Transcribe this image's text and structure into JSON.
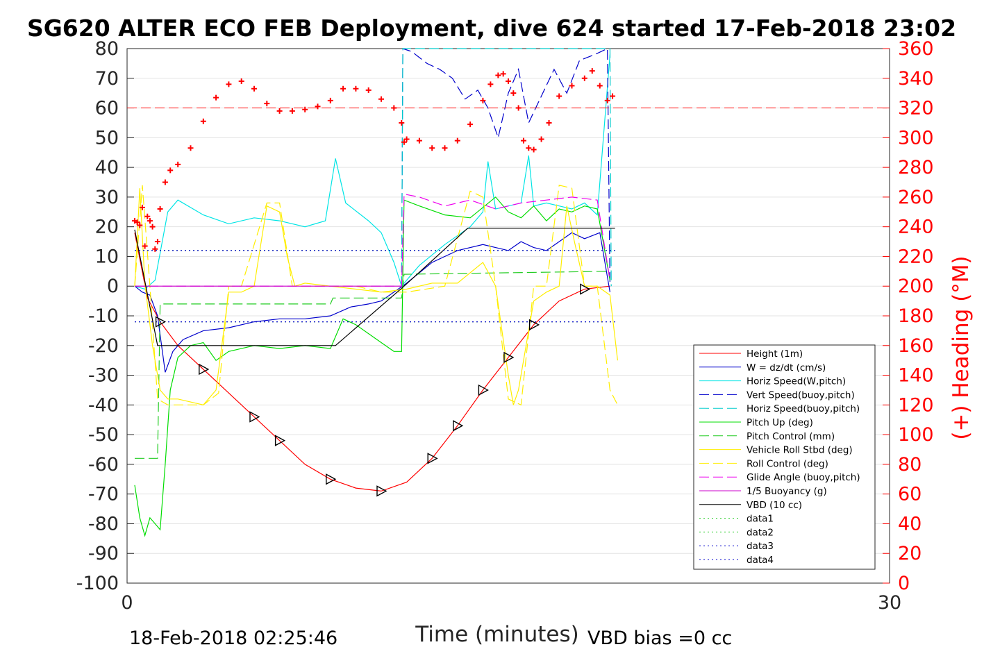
{
  "chart_data": {
    "type": "line",
    "title": "SG620 ALTER ECO FEB Deployment, dive 624 started 17-Feb-2018 23:02",
    "xlabel": "Time (minutes)",
    "ylabel_right": "(+) Heading (°M)",
    "xlim": [
      0,
      30
    ],
    "ylim": [
      -100,
      80
    ],
    "ylim_right": [
      0,
      360
    ],
    "x_ticks": [
      0,
      30
    ],
    "y_ticks": [
      -100,
      -90,
      -80,
      -70,
      -60,
      -50,
      -40,
      -30,
      -20,
      -10,
      0,
      10,
      20,
      30,
      40,
      50,
      60,
      70,
      80
    ],
    "y_ticks_right": [
      0,
      20,
      40,
      60,
      80,
      100,
      120,
      140,
      160,
      180,
      200,
      220,
      240,
      260,
      280,
      300,
      320,
      340,
      360
    ],
    "grid": true,
    "legend_position": "right",
    "footer_left": "18-Feb-2018 02:25:46",
    "footer_right": "VBD bias =0 cc",
    "colors": {
      "height": "#ff0000",
      "w": "#0000cc",
      "horiz_w": "#00e5e5",
      "vert_buoy": "#0000cc",
      "horiz_buoy": "#00cccc",
      "pitch": "#00dd00",
      "pitch_ctrl": "#22cc22",
      "roll": "#ffee00",
      "roll_ctrl": "#ffee00",
      "glide": "#ee00ee",
      "buoy": "#cc00cc",
      "vbd": "#000000",
      "heading": "#ff0000",
      "heading_ref": "#ff0000"
    },
    "legend": [
      {
        "label": "Height (1m)",
        "color": "#ff0000",
        "dash": "",
        "width": 1
      },
      {
        "label": "W = dz/dt (cm/s)",
        "color": "#0000cc",
        "dash": "",
        "width": 1
      },
      {
        "label": "Horiz Speed(W,pitch)",
        "color": "#00e5e5",
        "dash": "",
        "width": 1
      },
      {
        "label": "Vert Speed(buoy,pitch)",
        "color": "#0000cc",
        "dash": "14,6",
        "width": 1
      },
      {
        "label": "Horiz Speed(buoy,pitch)",
        "color": "#00cccc",
        "dash": "14,6",
        "width": 1
      },
      {
        "label": "Pitch Up (deg)",
        "color": "#00dd00",
        "dash": "",
        "width": 1
      },
      {
        "label": "Pitch Control (mm)",
        "color": "#22cc22",
        "dash": "14,6",
        "width": 1
      },
      {
        "label": "Vehicle Roll Stbd (deg)",
        "color": "#ffee00",
        "dash": "",
        "width": 1
      },
      {
        "label": "Roll Control (deg)",
        "color": "#ffee00",
        "dash": "14,6",
        "width": 1
      },
      {
        "label": "Glide Angle (buoy,pitch)",
        "color": "#ee00ee",
        "dash": "14,6",
        "width": 1
      },
      {
        "label": "1/5 Buoyancy (g)",
        "color": "#cc00cc",
        "dash": "",
        "width": 1
      },
      {
        "label": "VBD (10 cc)",
        "color": "#000000",
        "dash": "",
        "width": 1
      },
      {
        "label": "data1",
        "color": "#22cc22",
        "dash": "2,4",
        "width": 1
      },
      {
        "label": "data2",
        "color": "#22cc22",
        "dash": "2,4",
        "width": 1
      },
      {
        "label": "data3",
        "color": "#0000cc",
        "dash": "2,4",
        "width": 1
      },
      {
        "label": "data4",
        "color": "#0000cc",
        "dash": "2,4",
        "width": 1
      }
    ],
    "series": [
      {
        "name": "Height (1m)",
        "key": "height",
        "x": [
          0.3,
          0.8,
          1.3,
          2.0,
          3.0,
          4.0,
          5.0,
          6.0,
          7.0,
          8.0,
          9.0,
          10.0,
          11.0,
          12.0,
          13.0,
          14.0,
          15.0,
          16.0,
          17.0,
          18.0,
          19.0
        ],
        "y": [
          18,
          -4,
          -12,
          -20,
          -28,
          -36,
          -44,
          -52,
          -60,
          -65,
          -68,
          -69,
          -66,
          -58,
          -47,
          -35,
          -24,
          -13,
          -5,
          -1,
          0
        ]
      },
      {
        "name": "W = dz/dt (cm/s)",
        "key": "w",
        "x": [
          0.3,
          0.6,
          0.9,
          1.2,
          1.5,
          1.8,
          2.2,
          3.0,
          4.0,
          5.0,
          6.0,
          7.0,
          8.0,
          8.8,
          9.5,
          10.0,
          11.0,
          12.0,
          13.0,
          14.0,
          15.0,
          15.5,
          16.0,
          16.5,
          17.0,
          17.5,
          18.0,
          18.6,
          19.0
        ],
        "y": [
          0,
          -2,
          -3,
          -10,
          -29,
          -22,
          -18,
          -15,
          -14,
          -12,
          -11,
          -11,
          -10,
          -7,
          -6,
          -5,
          1,
          8,
          12,
          14,
          12,
          15,
          13,
          12,
          15,
          18,
          16,
          18,
          -2
        ]
      },
      {
        "name": "Horiz Speed(W,pitch)",
        "key": "horiz_w",
        "x": [
          0.3,
          0.7,
          1.1,
          1.6,
          2.0,
          3.0,
          4.0,
          5.0,
          6.0,
          7.0,
          7.8,
          8.2,
          8.6,
          9.5,
          10.0,
          10.5,
          10.8,
          11.5,
          12.5,
          13.5,
          14.0,
          14.2,
          14.5,
          15.0,
          15.5,
          15.8,
          16.0,
          16.5,
          17.0,
          17.5,
          18.0,
          18.5,
          19.0
        ],
        "y": [
          0,
          -1,
          2,
          25,
          29,
          24,
          21,
          23,
          22,
          20,
          22,
          43,
          28,
          22,
          18,
          8,
          0,
          7,
          14,
          20,
          25,
          42,
          26,
          27,
          28,
          44,
          27,
          28,
          27,
          26,
          28,
          24,
          78
        ]
      },
      {
        "name": "Vert Speed(buoy,pitch)",
        "key": "vert_buoy",
        "x": [
          10.8,
          10.85,
          11.2,
          11.8,
          12.3,
          12.8,
          13.3,
          13.8,
          14.2,
          14.6,
          15.0,
          15.4,
          15.8,
          16.3,
          16.8,
          17.3,
          17.8,
          18.4,
          18.9,
          19.0
        ],
        "y": [
          0,
          80,
          79,
          75,
          73,
          70,
          63,
          66,
          60,
          50,
          65,
          73,
          55,
          64,
          73,
          65,
          76,
          78,
          80,
          0
        ]
      },
      {
        "name": "Horiz Speed(buoy,pitch)",
        "key": "horiz_buoy",
        "x": [
          10.8,
          10.85,
          19.0,
          19.05
        ],
        "y": [
          0,
          80,
          80,
          0
        ]
      },
      {
        "name": "Pitch Up (deg)",
        "key": "pitch",
        "x": [
          0.3,
          0.5,
          0.7,
          0.9,
          1.1,
          1.3,
          1.5,
          1.7,
          2.0,
          2.5,
          3.0,
          3.5,
          4.0,
          5.0,
          6.0,
          7.0,
          8.0,
          8.5,
          9.0,
          10.0,
          10.5,
          10.8,
          10.9,
          11.5,
          12.5,
          13.5,
          14.5,
          15.0,
          15.5,
          16.0,
          16.5,
          17.0,
          17.5,
          18.0,
          18.5,
          19.0
        ],
        "y": [
          -67,
          -78,
          -84,
          -78,
          -80,
          -82,
          -60,
          -35,
          -24,
          -20,
          -19,
          -25,
          -22,
          -20,
          -21,
          -20,
          -21,
          -11,
          -13,
          -19,
          -22,
          -22,
          29,
          27,
          24,
          23,
          30,
          25,
          23,
          27,
          22,
          26,
          25,
          27,
          26,
          2
        ]
      },
      {
        "name": "Pitch Control (mm)",
        "key": "pitch_ctrl",
        "x": [
          0.3,
          1.2,
          1.3,
          1.4,
          8.0,
          8.1,
          10.8,
          10.9,
          19.0
        ],
        "y": [
          -58,
          -58,
          -6,
          -6,
          -6,
          -4,
          -4,
          4,
          5
        ]
      },
      {
        "name": "Vehicle Roll Stbd (deg)",
        "key": "roll",
        "x": [
          0.3,
          0.5,
          0.7,
          1.0,
          1.3,
          1.6,
          2.0,
          3.0,
          3.5,
          4.0,
          4.5,
          5.0,
          5.5,
          6.0,
          6.3,
          6.6,
          7.0,
          8.0,
          9.0,
          10.0,
          11.0,
          12.0,
          13.0,
          14.0,
          14.5,
          15.0,
          15.2,
          15.4,
          16.0,
          16.5,
          17.0,
          17.3,
          17.6,
          18.0,
          18.5,
          19.0,
          19.3
        ],
        "y": [
          0,
          33,
          1,
          -20,
          -35,
          -38,
          -38,
          -40,
          -35,
          -2,
          -2,
          0,
          27,
          25,
          10,
          0,
          1,
          0,
          -1,
          -2,
          -1,
          1,
          1,
          8,
          0,
          -30,
          -40,
          -35,
          -5,
          -2,
          0,
          27,
          15,
          0,
          0,
          -3,
          -25
        ]
      },
      {
        "name": "Roll Control (deg)",
        "key": "roll_ctrl",
        "x": [
          0.3,
          0.6,
          0.9,
          1.2,
          1.6,
          3.0,
          3.6,
          4.0,
          4.5,
          5.5,
          6.0,
          6.5,
          7.5,
          9.0,
          10.0,
          11.0,
          12.5,
          13.5,
          14.0,
          14.5,
          15.0,
          15.5,
          16.0,
          16.5,
          17.0,
          17.5,
          18.0,
          18.5,
          19.0,
          19.3
        ],
        "y": [
          0,
          34,
          0,
          -38,
          -40,
          -40,
          -36,
          0,
          0,
          28,
          28,
          0,
          0,
          0,
          -2,
          -2,
          0,
          32,
          30,
          0,
          -38,
          -40,
          0,
          0,
          34,
          33,
          0,
          0,
          -35,
          -40
        ]
      },
      {
        "name": "Glide Angle (buoy,pitch)",
        "key": "glide",
        "x": [
          0.3,
          0.6,
          10.8,
          10.9,
          11.5,
          12.5,
          13.5,
          14.5,
          15.5,
          16.5,
          17.5,
          18.5,
          19.0
        ],
        "y": [
          0,
          0,
          0,
          31,
          30,
          27,
          29,
          26,
          28,
          29,
          30,
          29,
          2
        ]
      },
      {
        "name": "1/5 Buoyancy (g)",
        "key": "buoy",
        "x": [
          0.3,
          10.8
        ],
        "y": [
          0,
          0
        ]
      },
      {
        "name": "VBD (10 cc)",
        "key": "vbd",
        "x": [
          0.3,
          1.2,
          8.2,
          10.9,
          13.4,
          19.2
        ],
        "y": [
          19,
          -20,
          -20,
          0,
          19.5,
          19.5
        ]
      },
      {
        "name": "data1",
        "key": "data1",
        "x": [
          0.3,
          19.2
        ],
        "y": [
          12,
          12
        ]
      },
      {
        "name": "data2",
        "key": "data2",
        "x": [
          0.3,
          19.2
        ],
        "y": [
          -12,
          -12
        ]
      },
      {
        "name": "data3",
        "key": "data3",
        "x": [
          0.3,
          19.2
        ],
        "y": [
          12,
          12
        ]
      },
      {
        "name": "data4",
        "key": "data4",
        "x": [
          0.3,
          19.2
        ],
        "y": [
          -12,
          -12
        ]
      }
    ],
    "heading": {
      "axis": "right",
      "reference_value": 320,
      "x": [
        0.3,
        0.4,
        0.5,
        0.6,
        0.7,
        0.8,
        0.9,
        1.0,
        1.1,
        1.2,
        1.3,
        1.5,
        1.7,
        2.0,
        2.5,
        3.0,
        3.5,
        4.0,
        4.5,
        5.0,
        5.5,
        6.0,
        6.5,
        7.0,
        7.5,
        8.0,
        8.5,
        9.0,
        9.5,
        10.0,
        10.5,
        10.8,
        10.9,
        11.0,
        11.5,
        12.0,
        12.5,
        13.0,
        13.5,
        14.0,
        14.3,
        14.6,
        14.8,
        15.0,
        15.2,
        15.4,
        15.6,
        15.8,
        16.0,
        16.3,
        16.6,
        17.0,
        17.5,
        18.0,
        18.3,
        18.6,
        18.9,
        19.1
      ],
      "y": [
        244,
        243,
        241,
        253,
        227,
        247,
        244,
        240,
        225,
        230,
        252,
        270,
        278,
        282,
        293,
        311,
        327,
        336,
        338,
        333,
        323,
        318,
        318,
        319,
        321,
        325,
        333,
        333,
        332,
        326,
        320,
        310,
        297,
        299,
        298,
        293,
        293,
        298,
        309,
        325,
        336,
        342,
        343,
        338,
        330,
        320,
        298,
        293,
        292,
        299,
        310,
        328,
        335,
        340,
        345,
        335,
        325,
        328
      ]
    }
  }
}
